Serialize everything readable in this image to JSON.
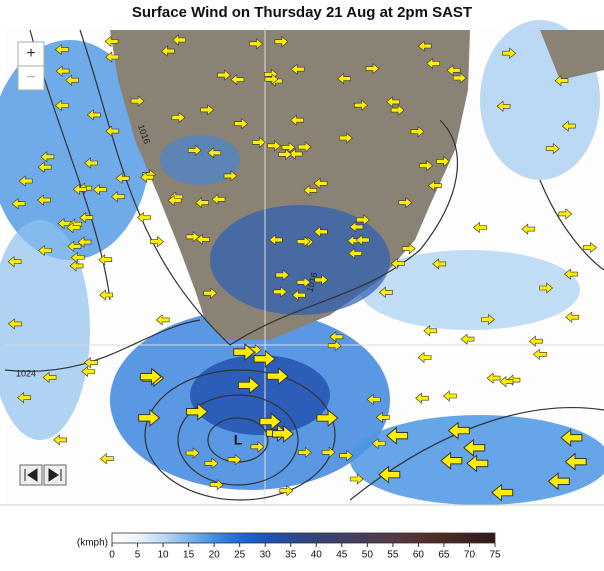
{
  "header": {
    "title": "Surface Wind on Thursday 21 Aug at 2pm SAST"
  },
  "map": {
    "zoom_in": "+",
    "zoom_out": "−",
    "isobar_labels": [
      "1016",
      "1016",
      "1024"
    ],
    "low_label": "L"
  },
  "legend": {
    "unit": "(kmph)",
    "ticks": [
      0,
      5,
      10,
      15,
      20,
      25,
      30,
      35,
      40,
      45,
      50,
      55,
      60,
      65,
      70,
      75
    ],
    "colors": [
      "#ffffff",
      "#eef5fd",
      "#bcd8f6",
      "#7fb4ec",
      "#3f8ee2",
      "#1f6ad4",
      "#1c55b8",
      "#274a98",
      "#334478",
      "#3e4066",
      "#4a3c56",
      "#553a48",
      "#56322e",
      "#4a2a22",
      "#3e2220",
      "#2e1a1a"
    ]
  }
}
